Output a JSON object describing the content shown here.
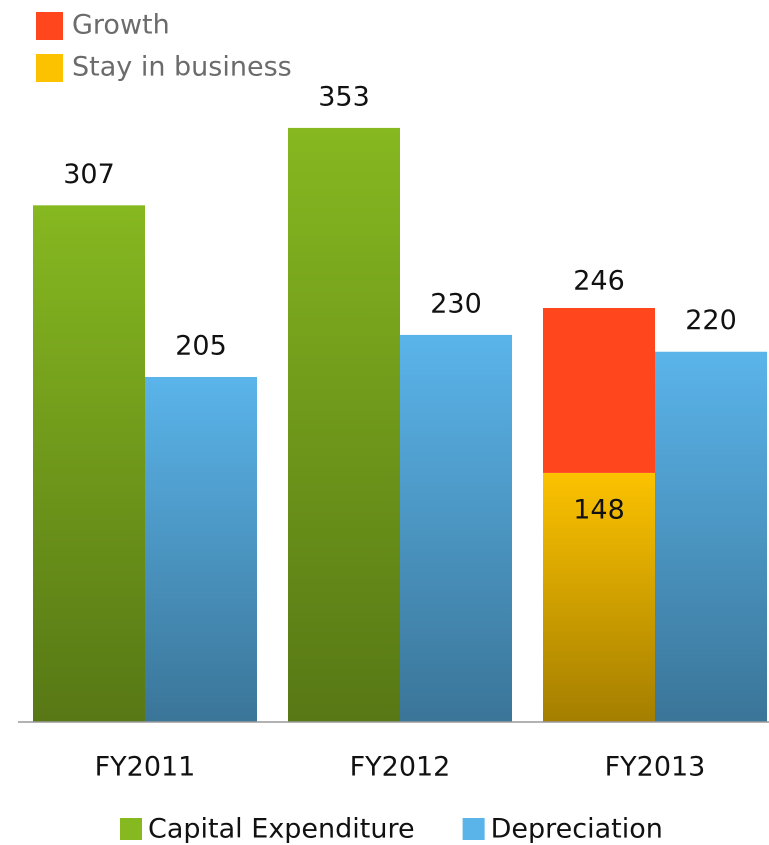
{
  "chart_data": {
    "type": "bar",
    "categories": [
      "FY2011",
      "FY2012",
      "FY2013"
    ],
    "ylim": [
      0,
      400
    ],
    "series": [
      {
        "name": "Capital Expenditure",
        "color": "#86b820",
        "group": 0,
        "legend": "bottom",
        "values": [
          307,
          353,
          null
        ]
      },
      {
        "name": "Depreciation",
        "color": "#5ab4ea",
        "group": 1,
        "legend": "bottom",
        "values": [
          205,
          230,
          220
        ]
      },
      {
        "name": "Stay in business",
        "color": "#fcc200",
        "group": 0,
        "legend": "top",
        "label_position": "inside",
        "values": [
          null,
          null,
          148
        ]
      },
      {
        "name": "Growth",
        "color": "#ff461c",
        "group": 0,
        "legend": "top",
        "stack_on": "Stay in business",
        "label_position": "none",
        "values": [
          null,
          null,
          98
        ]
      }
    ],
    "totals": [
      null,
      null,
      246
    ]
  }
}
